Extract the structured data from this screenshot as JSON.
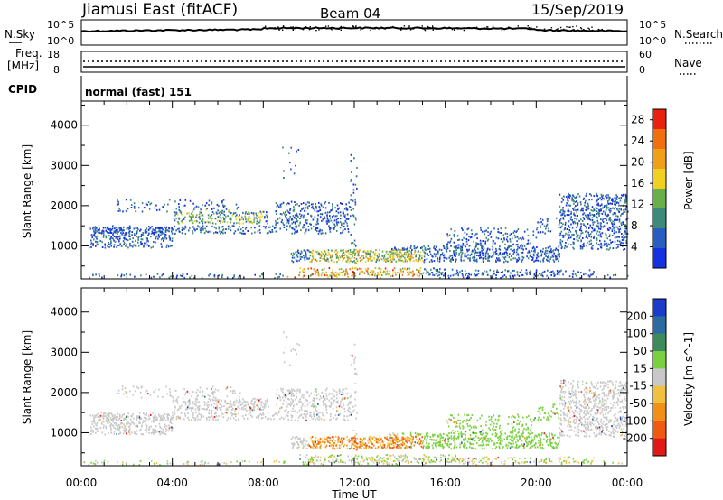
{
  "header": {
    "station": "Jiamusi East (fitACF)",
    "beam": "Beam 04",
    "date": "15/Sep/2019"
  },
  "panels": {
    "nsky_label": "N.Sky",
    "nsearch_label": "N.Search",
    "nsky_ticks": [
      "10^5",
      "10^0"
    ],
    "nsearch_ticks": [
      "10^5",
      "10^0"
    ],
    "freq_label_1": "Freq.",
    "freq_label_2": "[MHz]",
    "freq_ticks": [
      "18",
      "8"
    ],
    "nave_label": "Nave",
    "nave_ticks": [
      "60",
      "0"
    ],
    "cpid_label": "CPID",
    "cpid_value": "normal (fast) 151"
  },
  "chart_data": [
    {
      "type": "heatmap",
      "name": "power",
      "ylabel": "Slant Range [km]",
      "xlabel": "Time UT",
      "xlim": [
        0,
        24
      ],
      "ylim": [
        180,
        4600
      ],
      "y_ticks": [
        1000,
        2000,
        3000,
        4000
      ],
      "colorbar_label": "Power [dB]",
      "colorbar_ticks": [
        4,
        8,
        12,
        16,
        20,
        24,
        28
      ],
      "colorbar_range": [
        0,
        30
      ],
      "colors": [
        "#1432e0",
        "#2a5dc0",
        "#3e8a78",
        "#6ab04a",
        "#f0d020",
        "#f0a018",
        "#f07010",
        "#e82010"
      ]
    },
    {
      "type": "heatmap",
      "name": "velocity",
      "ylabel": "Slant Range [km]",
      "xlabel": "Time UT",
      "xlim": [
        0,
        24
      ],
      "ylim": [
        180,
        4600
      ],
      "y_ticks": [
        1000,
        2000,
        3000,
        4000
      ],
      "colorbar_label": "Velocity [m s^-1]",
      "colorbar_ticks": [
        "200",
        "100",
        "50",
        "15",
        "-15",
        "-50",
        "-100",
        "-200"
      ],
      "colors": [
        "#1a3cc8",
        "#2c6aa0",
        "#3f8a5a",
        "#7ad040",
        "#c8c8c8",
        "#f0c040",
        "#f09018",
        "#f05a10",
        "#e01818"
      ]
    }
  ],
  "x_ticks": [
    "00:00",
    "04:00",
    "08:00",
    "12:00",
    "16:00",
    "20:00",
    "00:00"
  ],
  "time_label": "Time UT"
}
